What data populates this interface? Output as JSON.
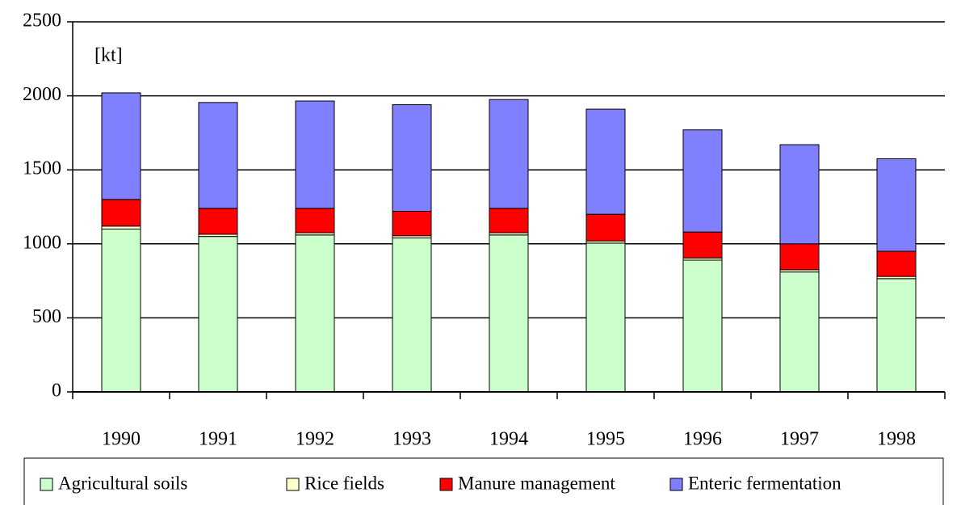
{
  "chart_data": {
    "type": "stacked_bar",
    "annotation": "[kt]",
    "categories": [
      "1990",
      "1991",
      "1992",
      "1993",
      "1994",
      "1995",
      "1996",
      "1997",
      "1998"
    ],
    "series": [
      {
        "name": "Agricultural soils",
        "color": "#ccffcc",
        "values": [
          1100,
          1050,
          1060,
          1040,
          1060,
          1005,
          890,
          810,
          765
        ]
      },
      {
        "name": "Rice fields",
        "color": "#ffffcc",
        "values": [
          20,
          15,
          15,
          15,
          15,
          15,
          15,
          15,
          15
        ]
      },
      {
        "name": "Manure management",
        "color": "#ff0000",
        "values": [
          180,
          175,
          165,
          165,
          165,
          180,
          175,
          175,
          170
        ]
      },
      {
        "name": "Enteric fermentation",
        "color": "#8080ff",
        "values": [
          720,
          715,
          725,
          720,
          735,
          710,
          690,
          670,
          625
        ]
      }
    ],
    "ylim": [
      0,
      2500
    ],
    "yticks": [
      0,
      500,
      1000,
      1500,
      2000,
      2500
    ],
    "grid": true,
    "legend": "bottom"
  }
}
